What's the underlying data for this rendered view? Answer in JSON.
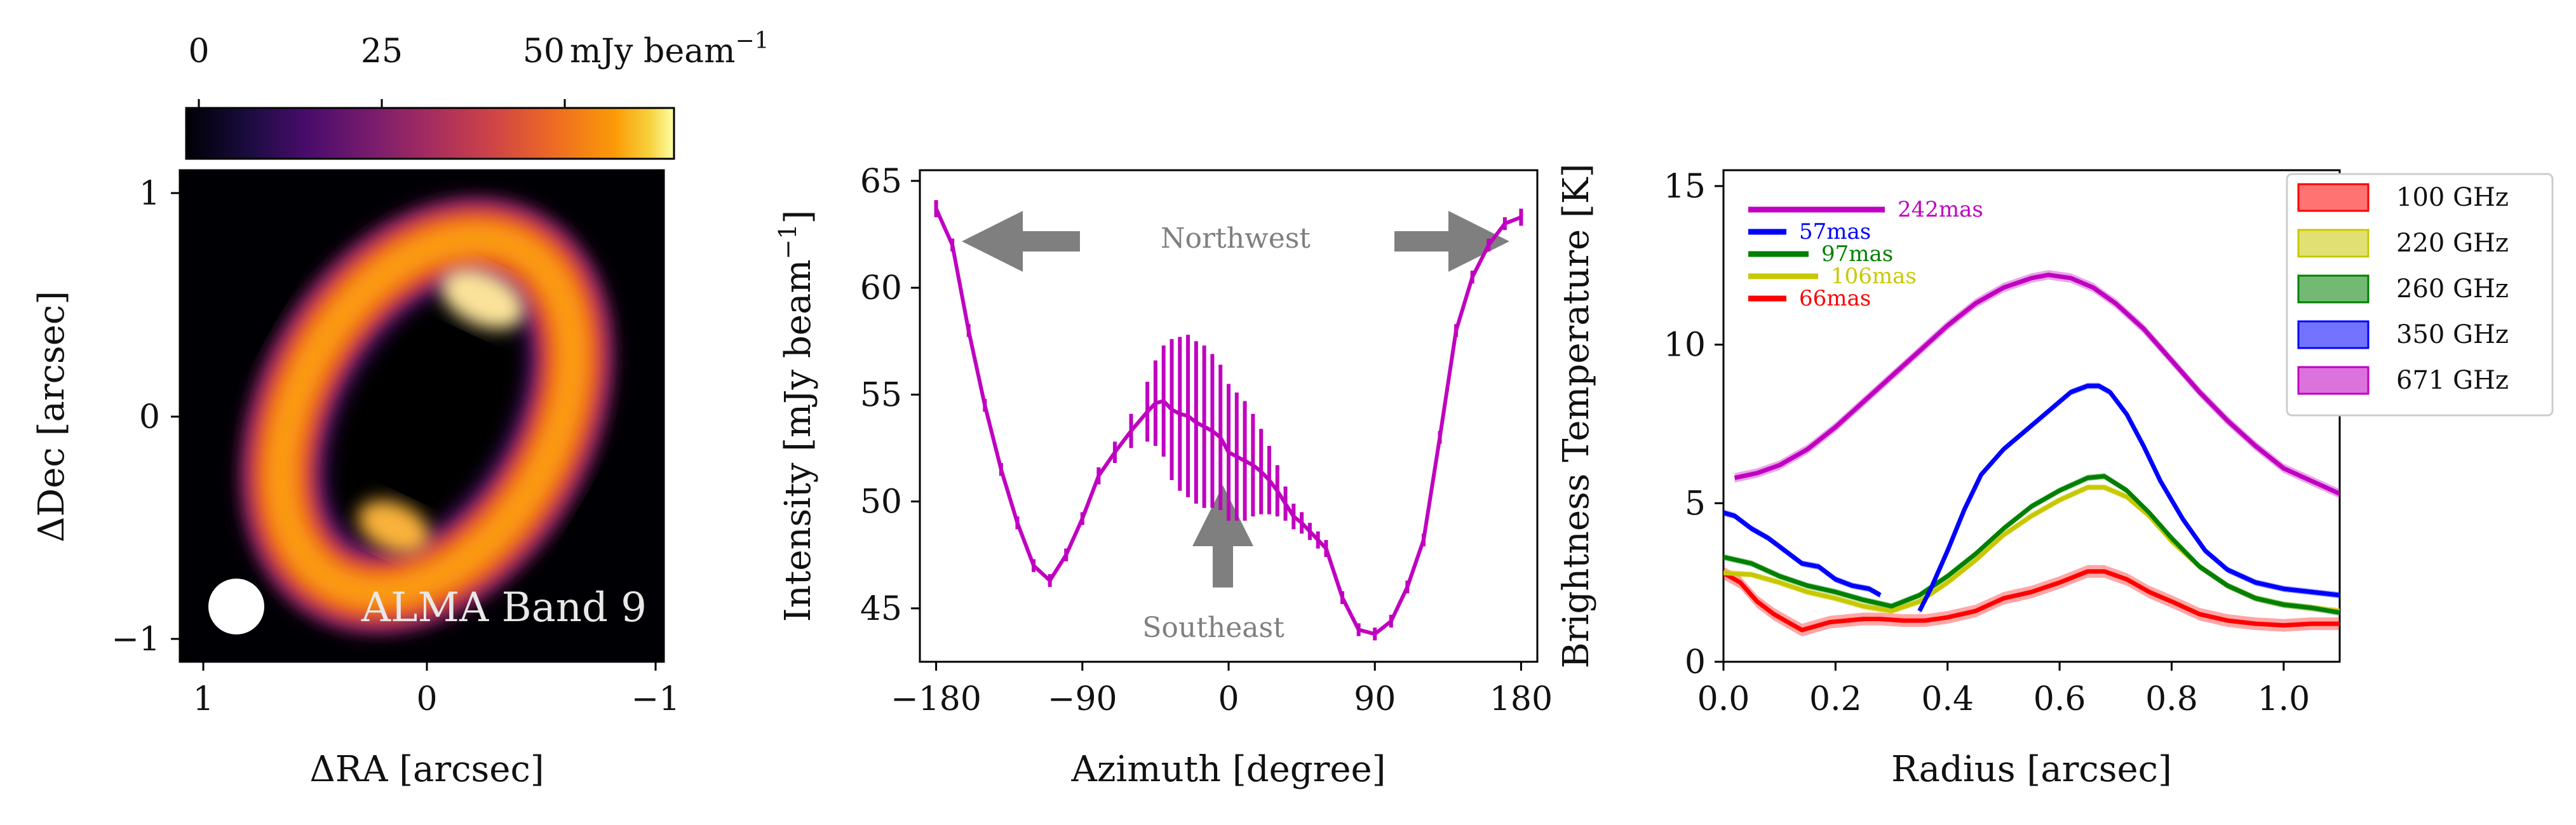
{
  "chart_data": [
    {
      "type": "heatmap",
      "colorbar": {
        "ticks": [
          "0",
          "25",
          "50"
        ],
        "unit_prefix": "mJy beam",
        "unit_exp": "−1",
        "range": [
          0,
          65
        ],
        "colormap": "inferno"
      },
      "xlabel": "ΔRA [arcsec]",
      "ylabel": "ΔDec [arcsec]",
      "xticks": [
        "1",
        "0",
        "−1"
      ],
      "yticks": [
        "1",
        "0",
        "−1"
      ],
      "xlim": [
        1.1,
        -1.1
      ],
      "ylim": [
        -1.1,
        1.1
      ],
      "ring": {
        "center": [
          0.0,
          0.0
        ],
        "semi_major": 0.72,
        "semi_minor": 0.48,
        "position_angle_deg": 25,
        "peak_mjy": 65
      },
      "annotation": "ALMA Band 9"
    },
    {
      "type": "line",
      "xlabel": "Azimuth [degree]",
      "ylabel": "Intensity [mJy beam",
      "ylabel_exp": "−1",
      "ylabel_end": "]",
      "xlim": [
        -190,
        190
      ],
      "ylim": [
        42.5,
        65.5
      ],
      "xticks": [
        "−180",
        "−90",
        "0",
        "90",
        "180"
      ],
      "yticks": [
        "45",
        "50",
        "55",
        "60",
        "65"
      ],
      "color": "#c000c0",
      "x": [
        -180,
        -170,
        -160,
        -150,
        -140,
        -130,
        -120,
        -110,
        -100,
        -90,
        -80,
        -70,
        -60,
        -50,
        -45,
        -40,
        -35,
        -30,
        -25,
        -20,
        -15,
        -10,
        -5,
        0,
        5,
        10,
        15,
        20,
        25,
        30,
        35,
        40,
        45,
        50,
        55,
        60,
        70,
        80,
        90,
        100,
        110,
        120,
        130,
        140,
        150,
        160,
        170,
        180
      ],
      "y": [
        63.7,
        62.0,
        58.0,
        54.5,
        51.5,
        49.0,
        47.0,
        46.3,
        47.5,
        49.2,
        51.2,
        52.3,
        53.3,
        54.2,
        54.6,
        54.7,
        54.3,
        54.1,
        54.0,
        53.7,
        53.5,
        53.3,
        53.0,
        52.3,
        52.1,
        51.9,
        51.7,
        51.4,
        51.0,
        50.5,
        49.9,
        49.3,
        49.0,
        48.6,
        48.2,
        47.8,
        45.5,
        44.0,
        43.8,
        44.4,
        46.0,
        48.2,
        53.0,
        58.0,
        60.5,
        62.0,
        63.0,
        63.3
      ],
      "err": [
        0.4,
        0.3,
        0.3,
        0.3,
        0.3,
        0.3,
        0.3,
        0.3,
        0.3,
        0.3,
        0.4,
        0.5,
        0.8,
        1.4,
        2.0,
        2.6,
        3.3,
        3.6,
        3.8,
        3.8,
        3.8,
        3.6,
        3.4,
        3.2,
        3.0,
        2.8,
        2.4,
        2.0,
        1.6,
        1.2,
        0.8,
        0.6,
        0.5,
        0.4,
        0.4,
        0.4,
        0.3,
        0.3,
        0.3,
        0.3,
        0.3,
        0.3,
        0.3,
        0.3,
        0.3,
        0.3,
        0.3,
        0.4
      ],
      "annotations": [
        "Northwest",
        "Southeast"
      ]
    },
    {
      "type": "line",
      "xlabel": "Radius [arcsec]",
      "ylabel": "Brightness Temperature [K]",
      "xlim": [
        0,
        1.1
      ],
      "ylim": [
        0,
        15.5
      ],
      "xticks": [
        "0.0",
        "0.2",
        "0.4",
        "0.6",
        "0.8",
        "1.0"
      ],
      "xtick_values": [
        0,
        0.2,
        0.4,
        0.6,
        0.8,
        1.0
      ],
      "ytick_values": [
        0,
        5,
        10,
        15
      ],
      "yticks": [
        "0",
        "5",
        "10",
        "15"
      ],
      "legend_position": "top-right",
      "series": [
        {
          "name": "100 GHz",
          "color": "#ff0000",
          "beam": "66mas",
          "x": [
            0.0,
            0.03,
            0.06,
            0.09,
            0.12,
            0.14,
            0.16,
            0.19,
            0.22,
            0.25,
            0.28,
            0.32,
            0.36,
            0.4,
            0.45,
            0.5,
            0.55,
            0.6,
            0.65,
            0.68,
            0.72,
            0.76,
            0.8,
            0.85,
            0.9,
            0.95,
            1.0,
            1.05,
            1.1
          ],
          "y": [
            2.8,
            2.5,
            1.9,
            1.5,
            1.2,
            1.0,
            1.1,
            1.25,
            1.3,
            1.35,
            1.35,
            1.3,
            1.3,
            1.4,
            1.6,
            2.0,
            2.2,
            2.5,
            2.85,
            2.85,
            2.6,
            2.2,
            1.9,
            1.5,
            1.3,
            1.2,
            1.15,
            1.2,
            1.2
          ],
          "band": 0.2
        },
        {
          "name": "220 GHz",
          "color": "#c8c800",
          "beam": "106mas",
          "x": [
            0.0,
            0.05,
            0.1,
            0.15,
            0.2,
            0.25,
            0.3,
            0.35,
            0.4,
            0.45,
            0.5,
            0.55,
            0.6,
            0.65,
            0.68,
            0.72,
            0.76,
            0.8,
            0.85,
            0.9,
            0.95,
            1.0,
            1.05,
            1.1
          ],
          "y": [
            2.8,
            2.75,
            2.5,
            2.2,
            2.0,
            1.75,
            1.6,
            1.9,
            2.5,
            3.2,
            4.0,
            4.6,
            5.1,
            5.5,
            5.5,
            5.2,
            4.6,
            3.8,
            3.0,
            2.4,
            2.0,
            1.8,
            1.7,
            1.6
          ],
          "band": 0.1
        },
        {
          "name": "260 GHz",
          "color": "#008000",
          "beam": "97mas",
          "x": [
            0.0,
            0.05,
            0.1,
            0.15,
            0.2,
            0.25,
            0.3,
            0.35,
            0.4,
            0.45,
            0.5,
            0.55,
            0.6,
            0.65,
            0.68,
            0.72,
            0.76,
            0.8,
            0.85,
            0.9,
            0.95,
            1.0,
            1.05,
            1.1
          ],
          "y": [
            3.3,
            3.1,
            2.7,
            2.4,
            2.2,
            1.95,
            1.75,
            2.1,
            2.7,
            3.4,
            4.2,
            4.9,
            5.4,
            5.8,
            5.85,
            5.4,
            4.7,
            3.9,
            3.0,
            2.4,
            2.0,
            1.8,
            1.7,
            1.55
          ],
          "band": 0.1
        },
        {
          "name": "350 GHz",
          "color": "#0000ff",
          "beam": "57mas",
          "x": [
            0.0,
            0.02,
            0.05,
            0.08,
            0.11,
            0.14,
            0.17,
            0.2,
            0.23,
            0.26,
            0.28,
            null,
            0.35,
            0.37,
            0.4,
            0.43,
            0.46,
            0.5,
            0.54,
            0.58,
            0.62,
            0.65,
            0.67,
            0.69,
            0.72,
            0.75,
            0.78,
            0.82,
            0.86,
            0.9,
            0.95,
            1.0,
            1.05,
            1.1
          ],
          "y": [
            4.7,
            4.6,
            4.2,
            3.9,
            3.5,
            3.1,
            3.0,
            2.6,
            2.4,
            2.3,
            2.1,
            null,
            1.6,
            2.3,
            3.5,
            4.8,
            5.9,
            6.7,
            7.3,
            7.9,
            8.5,
            8.7,
            8.7,
            8.5,
            7.8,
            6.8,
            5.7,
            4.5,
            3.5,
            2.9,
            2.5,
            2.3,
            2.2,
            2.1
          ],
          "band": 0.1
        },
        {
          "name": "671 GHz",
          "color": "#c000c0",
          "beam": "242mas",
          "x": [
            0.02,
            0.06,
            0.1,
            0.15,
            0.2,
            0.25,
            0.3,
            0.35,
            0.4,
            0.45,
            0.5,
            0.55,
            0.58,
            0.62,
            0.66,
            0.7,
            0.75,
            0.8,
            0.85,
            0.9,
            0.95,
            1.0,
            1.05,
            1.1
          ],
          "y": [
            5.8,
            5.95,
            6.2,
            6.7,
            7.4,
            8.2,
            9.0,
            9.8,
            10.6,
            11.3,
            11.8,
            12.1,
            12.2,
            12.1,
            11.8,
            11.3,
            10.5,
            9.5,
            8.5,
            7.6,
            6.8,
            6.1,
            5.7,
            5.3
          ],
          "band": 0.15
        }
      ]
    }
  ]
}
